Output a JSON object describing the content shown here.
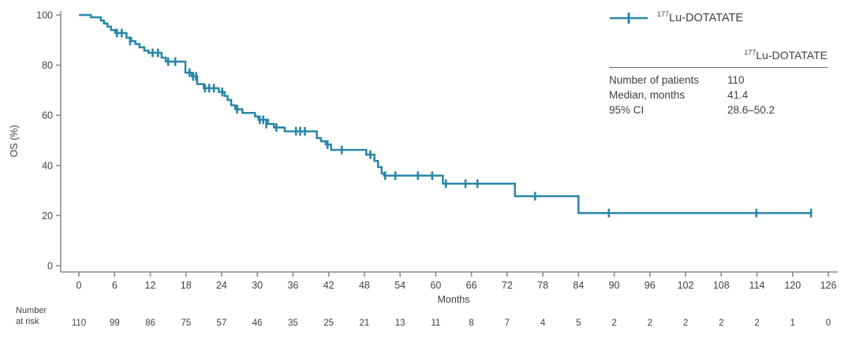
{
  "colors": {
    "series": "#2787A8",
    "axis": "#8A8C8E",
    "text": "#414042",
    "table_rule": "#6D6E70"
  },
  "figure": {
    "y_axis_label": "OS (%)",
    "x_axis_label": "Months",
    "legend": {
      "isotope": "177",
      "name": "Lu-DOTATATE"
    },
    "stats_table": {
      "header_isotope": "177",
      "header_name": "Lu-DOTATATE",
      "rows": [
        {
          "label": "Number of patients",
          "value": "110"
        },
        {
          "label": "Median, months",
          "value": "41.4"
        },
        {
          "label": "95% CI",
          "value": "28.6–50.2"
        }
      ]
    },
    "at_risk_label_line1": "Number",
    "at_risk_label_line2": "at risk"
  },
  "chart_data": {
    "type": "line",
    "subtype": "kaplan-meier-step",
    "title": "",
    "xlabel": "Months",
    "ylabel": "OS (%)",
    "xlim": [
      0,
      126
    ],
    "ylim": [
      0,
      100
    ],
    "x_ticks": [
      0,
      6,
      12,
      18,
      24,
      30,
      36,
      42,
      48,
      54,
      60,
      66,
      72,
      78,
      84,
      90,
      96,
      102,
      108,
      114,
      120,
      126
    ],
    "y_ticks": [
      0,
      20,
      40,
      60,
      80,
      100
    ],
    "grid": false,
    "legend_position": "top-right",
    "series": [
      {
        "name": "177Lu-DOTATATE",
        "color": "#2787A8",
        "median_months": 41.4,
        "ci_95": "28.6-50.2",
        "n_patients": 110,
        "steps": [
          [
            0,
            100
          ],
          [
            2,
            99.1
          ],
          [
            3.7,
            97.8
          ],
          [
            4.2,
            96.6
          ],
          [
            4.8,
            95.3
          ],
          [
            5.4,
            94.0
          ],
          [
            6.1,
            92.8
          ],
          [
            8.0,
            90.9
          ],
          [
            8.8,
            89.6
          ],
          [
            9.5,
            88.4
          ],
          [
            10.2,
            87.1
          ],
          [
            11.0,
            85.8
          ],
          [
            11.7,
            84.9
          ],
          [
            13.9,
            83.0
          ],
          [
            14.6,
            81.4
          ],
          [
            17.9,
            77.0
          ],
          [
            19.0,
            75.5
          ],
          [
            19.9,
            72.4
          ],
          [
            21.0,
            70.8
          ],
          [
            23.5,
            69.3
          ],
          [
            24.5,
            67.7
          ],
          [
            25.0,
            66.1
          ],
          [
            25.6,
            64.0
          ],
          [
            26.3,
            62.4
          ],
          [
            27.5,
            60.9
          ],
          [
            29.6,
            59.5
          ],
          [
            30.2,
            58.2
          ],
          [
            31.8,
            56.5
          ],
          [
            32.8,
            55.1
          ],
          [
            34.6,
            53.6
          ],
          [
            40.0,
            50.9
          ],
          [
            40.7,
            49.6
          ],
          [
            41.5,
            48.3
          ],
          [
            42.4,
            46.2
          ],
          [
            48.3,
            44.3
          ],
          [
            49.7,
            41.8
          ],
          [
            50.3,
            39.3
          ],
          [
            50.9,
            36.8
          ],
          [
            51.3,
            35.9
          ],
          [
            61.2,
            32.7
          ],
          [
            73.3,
            27.7
          ],
          [
            84.0,
            21.0
          ],
          [
            123.3,
            21.0
          ]
        ],
        "censors": [
          [
            6.4,
            92.8
          ],
          [
            7.2,
            92.8
          ],
          [
            8.6,
            89.6
          ],
          [
            12.4,
            84.9
          ],
          [
            13.3,
            84.9
          ],
          [
            15.0,
            81.4
          ],
          [
            16.2,
            81.4
          ],
          [
            18.6,
            77.0
          ],
          [
            19.2,
            75.5
          ],
          [
            19.7,
            75.5
          ],
          [
            21.2,
            70.8
          ],
          [
            21.9,
            70.8
          ],
          [
            22.7,
            70.8
          ],
          [
            24.1,
            69.3
          ],
          [
            26.6,
            62.4
          ],
          [
            30.4,
            58.2
          ],
          [
            31.0,
            58.2
          ],
          [
            31.5,
            56.5
          ],
          [
            33.2,
            55.1
          ],
          [
            36.5,
            53.6
          ],
          [
            37.2,
            53.6
          ],
          [
            38.0,
            53.6
          ],
          [
            41.8,
            48.3
          ],
          [
            44.2,
            46.2
          ],
          [
            49.0,
            44.3
          ],
          [
            51.5,
            35.9
          ],
          [
            53.2,
            35.9
          ],
          [
            57.0,
            35.9
          ],
          [
            59.4,
            35.9
          ],
          [
            61.7,
            32.7
          ],
          [
            65.0,
            32.7
          ],
          [
            67.0,
            32.7
          ],
          [
            76.7,
            27.7
          ],
          [
            89.1,
            21.0
          ],
          [
            113.9,
            21.0
          ],
          [
            123.1,
            21.0
          ]
        ]
      }
    ],
    "at_risk": {
      "times": [
        0,
        6,
        12,
        18,
        24,
        30,
        36,
        42,
        48,
        54,
        60,
        66,
        72,
        78,
        84,
        90,
        96,
        102,
        108,
        114,
        120,
        126
      ],
      "values": [
        110,
        99,
        86,
        75,
        57,
        46,
        35,
        25,
        21,
        13,
        11,
        8,
        7,
        4,
        5,
        2,
        2,
        2,
        2,
        2,
        1,
        0
      ]
    }
  }
}
